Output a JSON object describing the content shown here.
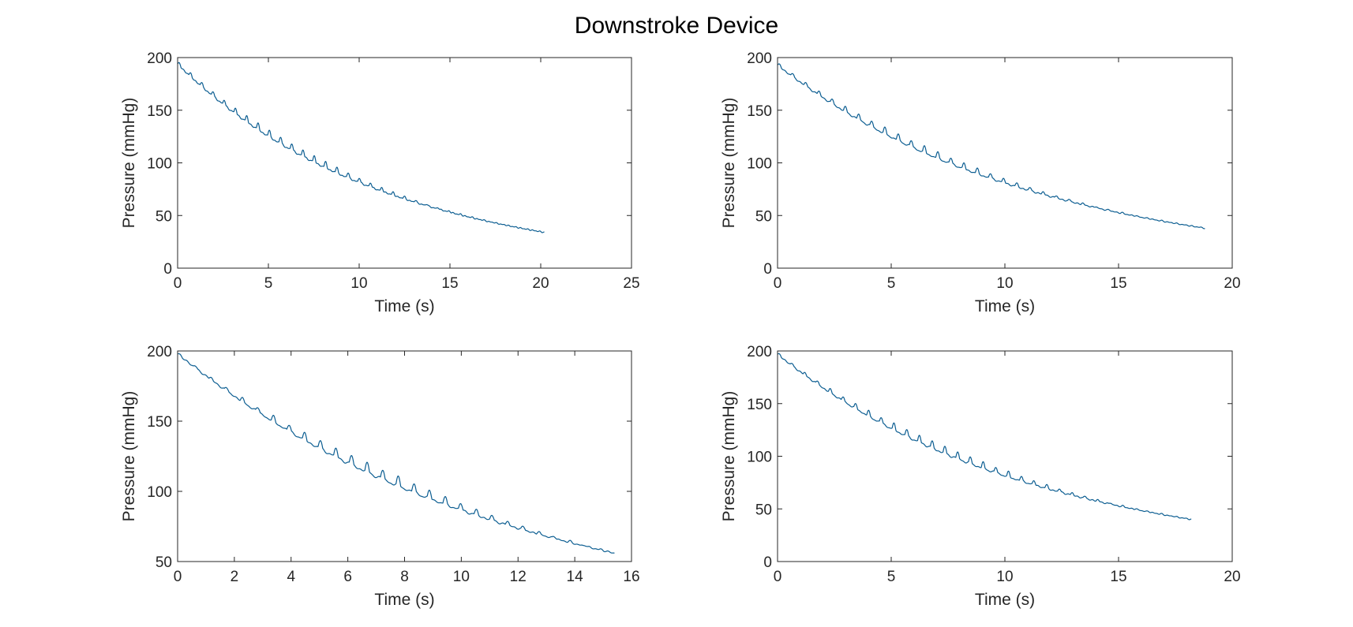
{
  "figure": {
    "title": "Downstroke Device",
    "line_color": "#0b5d91"
  },
  "chart_data": [
    {
      "type": "line",
      "xlabel": "Time (s)",
      "ylabel": "Pressure (mmHg)",
      "xlim": [
        0,
        25
      ],
      "ylim": [
        0,
        200
      ],
      "xticks": [
        0,
        5,
        10,
        15,
        20,
        25
      ],
      "yticks": [
        0,
        50,
        100,
        150,
        200
      ],
      "grid": false,
      "curve": {
        "t_end": 20.2,
        "p_start": 194,
        "p_end": 34,
        "osc_peak_time": 6.0,
        "osc_peak_amp": 5.5,
        "osc_period": 0.62
      },
      "series": [
        {
          "x": [
            0,
            2.5,
            5,
            7.5,
            10,
            12.5,
            15,
            17.5,
            20.2
          ],
          "y": [
            194,
            150,
            121,
            99,
            81,
            67,
            55,
            44,
            34
          ]
        }
      ]
    },
    {
      "type": "line",
      "xlabel": "Time (s)",
      "ylabel": "Pressure (mmHg)",
      "xlim": [
        0,
        20
      ],
      "ylim": [
        0,
        200
      ],
      "xticks": [
        0,
        5,
        10,
        15,
        20
      ],
      "yticks": [
        0,
        50,
        100,
        150,
        200
      ],
      "grid": false,
      "curve": {
        "t_end": 18.8,
        "p_start": 193,
        "p_end": 38,
        "osc_peak_time": 6.0,
        "osc_peak_amp": 5.5,
        "osc_period": 0.58
      },
      "series": [
        {
          "x": [
            0,
            2.5,
            5,
            7.5,
            10,
            12.5,
            15,
            17.5,
            18.8
          ],
          "y": [
            193,
            150,
            118,
            95,
            78,
            65,
            54,
            43,
            38
          ]
        }
      ]
    },
    {
      "type": "line",
      "xlabel": "Time (s)",
      "ylabel": "Pressure (mmHg)",
      "xlim": [
        0,
        16
      ],
      "ylim": [
        50,
        200
      ],
      "xticks": [
        0,
        2,
        4,
        6,
        8,
        10,
        12,
        14,
        16
      ],
      "yticks": [
        50,
        100,
        150,
        200
      ],
      "grid": false,
      "curve": {
        "t_end": 15.4,
        "p_start": 198,
        "p_end": 56,
        "osc_peak_time": 7.0,
        "osc_peak_amp": 6.0,
        "osc_period": 0.55
      },
      "series": [
        {
          "x": [
            0,
            2,
            4,
            6,
            8,
            10,
            12,
            14,
            15.4
          ],
          "y": [
            198,
            170,
            145,
            123,
            104,
            88,
            75,
            63,
            56
          ]
        }
      ]
    },
    {
      "type": "line",
      "xlabel": "Time (s)",
      "ylabel": "Pressure (mmHg)",
      "xlim": [
        0,
        20
      ],
      "ylim": [
        0,
        200
      ],
      "xticks": [
        0,
        5,
        10,
        15,
        20
      ],
      "yticks": [
        0,
        50,
        100,
        150,
        200
      ],
      "grid": false,
      "curve": {
        "t_end": 18.2,
        "p_start": 197,
        "p_end": 40,
        "osc_peak_time": 7.0,
        "osc_peak_amp": 6.0,
        "osc_period": 0.56
      },
      "series": [
        {
          "x": [
            0,
            2.5,
            5,
            7.5,
            10,
            12.5,
            15,
            18.2
          ],
          "y": [
            197,
            152,
            124,
            99,
            80,
            67,
            56,
            40
          ]
        }
      ]
    }
  ]
}
